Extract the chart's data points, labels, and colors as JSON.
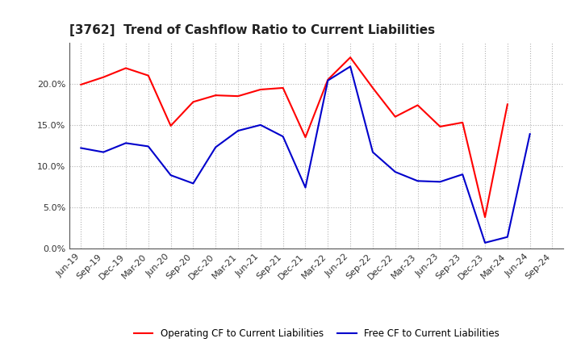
{
  "title": "[3762]  Trend of Cashflow Ratio to Current Liabilities",
  "x_labels": [
    "Jun-19",
    "Sep-19",
    "Dec-19",
    "Mar-20",
    "Jun-20",
    "Sep-20",
    "Dec-20",
    "Mar-21",
    "Jun-21",
    "Sep-21",
    "Dec-21",
    "Mar-22",
    "Jun-22",
    "Sep-22",
    "Dec-22",
    "Mar-23",
    "Jun-23",
    "Sep-23",
    "Dec-23",
    "Mar-24",
    "Jun-24",
    "Sep-24"
  ],
  "operating_cf": [
    0.199,
    0.208,
    0.219,
    0.21,
    0.149,
    0.178,
    0.186,
    0.185,
    0.193,
    0.195,
    0.135,
    0.205,
    0.232,
    0.195,
    0.16,
    0.174,
    0.148,
    0.153,
    0.038,
    0.175,
    null,
    null
  ],
  "free_cf": [
    0.122,
    0.117,
    0.128,
    0.124,
    0.089,
    0.079,
    0.123,
    0.143,
    0.15,
    0.136,
    0.074,
    0.204,
    0.221,
    0.117,
    0.093,
    0.082,
    0.081,
    0.09,
    0.007,
    0.014,
    0.139,
    null
  ],
  "ylim": [
    0.0,
    0.25
  ],
  "yticks": [
    0.0,
    0.05,
    0.1,
    0.15,
    0.2
  ],
  "operating_color": "#FF0000",
  "free_color": "#0000CC",
  "background_color": "#FFFFFF",
  "grid_color": "#AAAAAA",
  "legend_op": "Operating CF to Current Liabilities",
  "legend_free": "Free CF to Current Liabilities",
  "title_fontsize": 11,
  "tick_fontsize": 8,
  "legend_fontsize": 8.5
}
